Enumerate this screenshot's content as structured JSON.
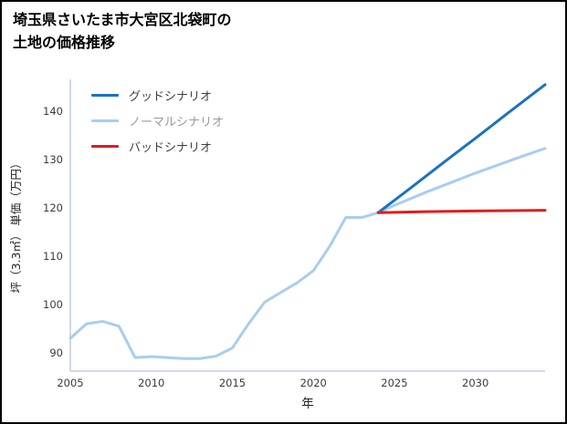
{
  "title": {
    "line1": "埼玉県さいたま市大宮区北袋町の",
    "line2": "土地の価格推移"
  },
  "chart_data": {
    "type": "line",
    "title": "埼玉県さいたま市大宮区北袋町の土地の価格推移",
    "xlabel": "年",
    "ylabel": "坪（3.3㎡） 単価（万円）",
    "x_ticks": [
      "2005",
      "2010",
      "2015",
      "2020",
      "2025",
      "2030"
    ],
    "x_tick_values": [
      2005,
      2010,
      2015,
      2020,
      2025,
      2030
    ],
    "y_ticks": [
      "90",
      "100",
      "110",
      "120",
      "130",
      "140"
    ],
    "y_tick_values": [
      90,
      100,
      110,
      120,
      130,
      140
    ],
    "xlim": [
      2005,
      2034.3
    ],
    "ylim": [
      86.2,
      146.6
    ],
    "grid": false,
    "legend_position": "top-left",
    "axis_color": "#c5cfdd",
    "tick_label_color": "#3b3b3b",
    "series": [
      {
        "key": "good-scenario",
        "name": "グッドシナリオ",
        "color": "#1a72c4",
        "label_color": "#3f3f3f",
        "line_width": 3,
        "zindex": 2,
        "x": [
          2024,
          2026,
          2028,
          2030,
          2032,
          2034.3
        ],
        "values": [
          119,
          124.1,
          129.3,
          134.4,
          139.6,
          145.5
        ]
      },
      {
        "key": "normal-scenario",
        "name": "ノーマルシナリオ",
        "color": "#a8cdf0",
        "label_color": "#9a9a9a",
        "line_width": 3,
        "zindex": 1,
        "x": [
          2005,
          2006,
          2007,
          2008,
          2009,
          2010,
          2011,
          2012,
          2013,
          2014,
          2015,
          2016,
          2017,
          2018,
          2019,
          2020,
          2021,
          2022,
          2023,
          2024,
          2025,
          2026,
          2027,
          2028,
          2029,
          2030,
          2031,
          2032,
          2033,
          2034.3
        ],
        "values": [
          93,
          96,
          96.5,
          95.5,
          89,
          89.2,
          89,
          88.8,
          88.8,
          89.3,
          91,
          96,
          100.5,
          102.5,
          104.5,
          107,
          112,
          118,
          118,
          119,
          120.5,
          121.9,
          123.3,
          124.6,
          125.9,
          127.2,
          128.4,
          129.6,
          130.8,
          132.3
        ]
      },
      {
        "key": "bad-scenario",
        "name": "バッドシナリオ",
        "color": "#e11c1c",
        "label_color": "#3f3f3f",
        "line_width": 3,
        "zindex": 3,
        "x": [
          2024,
          2027,
          2030,
          2034.3
        ],
        "values": [
          119,
          119.2,
          119.35,
          119.5
        ]
      }
    ]
  }
}
